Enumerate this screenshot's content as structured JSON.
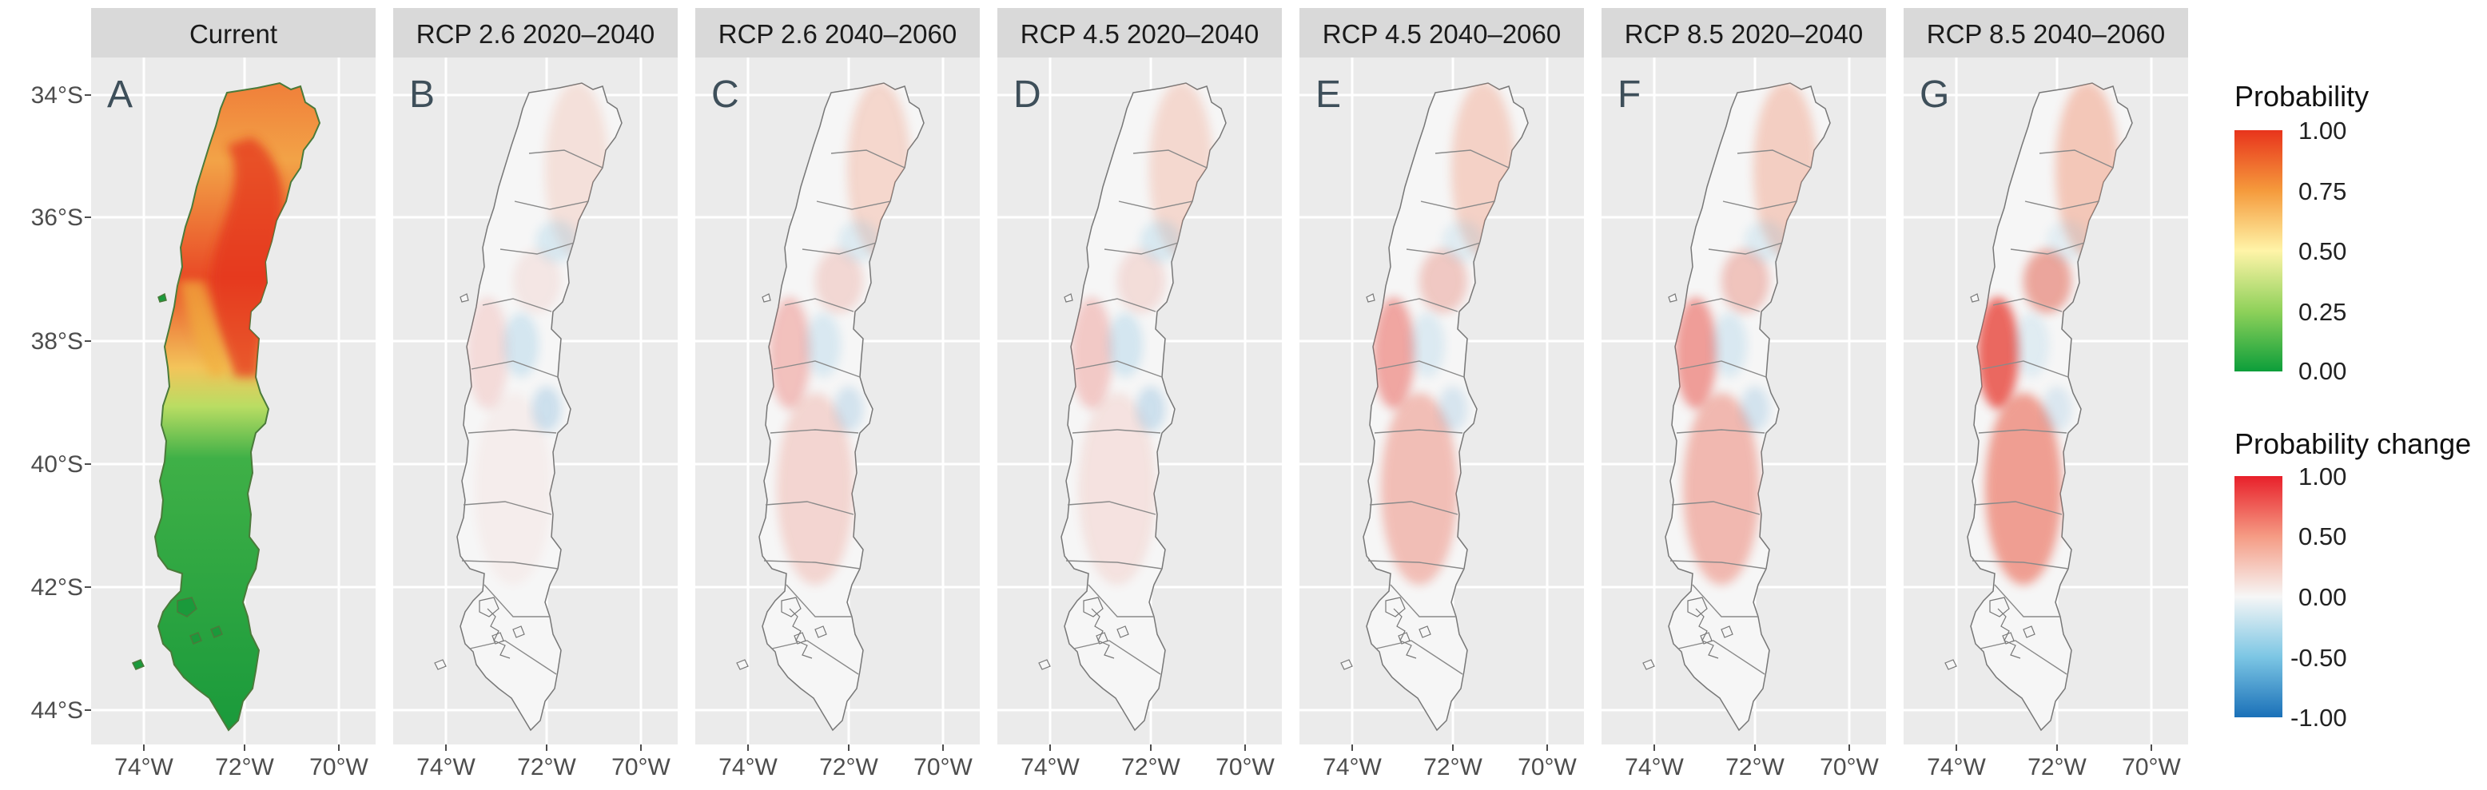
{
  "figure": {
    "panels": [
      {
        "title": "Current",
        "letter": "A",
        "kind": "current"
      },
      {
        "title": "RCP 2.6 2020–2040",
        "letter": "B",
        "kind": "change",
        "level": 0.15,
        "north": 0.2,
        "south": 0.05,
        "blue": 0.22
      },
      {
        "title": "RCP 2.6 2040–2060",
        "letter": "C",
        "kind": "change",
        "level": 0.3,
        "north": 0.3,
        "south": 0.2,
        "blue": 0.18
      },
      {
        "title": "RCP 4.5 2020–2040",
        "letter": "D",
        "kind": "change",
        "level": 0.25,
        "north": 0.28,
        "south": 0.12,
        "blue": 0.22
      },
      {
        "title": "RCP 4.5 2040–2060",
        "letter": "E",
        "kind": "change",
        "level": 0.45,
        "north": 0.35,
        "south": 0.35,
        "blue": 0.16
      },
      {
        "title": "RCP 8.5 2020–2040",
        "letter": "F",
        "kind": "change",
        "level": 0.5,
        "north": 0.38,
        "south": 0.38,
        "blue": 0.18
      },
      {
        "title": "RCP 8.5 2040–2060",
        "letter": "G",
        "kind": "change",
        "level": 0.8,
        "north": 0.45,
        "south": 0.55,
        "blue": 0.14
      }
    ],
    "y_ticks": [
      "34°S",
      "36°S",
      "38°S",
      "40°S",
      "42°S",
      "44°S"
    ],
    "x_ticks": [
      "74°W",
      "72°W",
      "70°W"
    ]
  },
  "legend_probability": {
    "title": "Probability",
    "ticks": [
      "1.00",
      "0.75",
      "0.50",
      "0.25",
      "0.00"
    ],
    "colors": [
      "#e8341c",
      "#f59a3c",
      "#fff4a8",
      "#8fd15a",
      "#0c9e3a"
    ]
  },
  "legend_change": {
    "title": "Probability change",
    "ticks": [
      "1.00",
      "0.50",
      "0.00",
      "-0.50",
      "-1.00"
    ],
    "colors": [
      "#e8202a",
      "#f59b84",
      "#f6f6f6",
      "#7cc6e4",
      "#1a70b8"
    ]
  },
  "colors": {
    "panel_bg": "#ebebeb",
    "strip_bg": "#d9d9d9",
    "grid": "#ffffff",
    "land_outline": "#777777",
    "land_fill": "#f6f6f6"
  }
}
